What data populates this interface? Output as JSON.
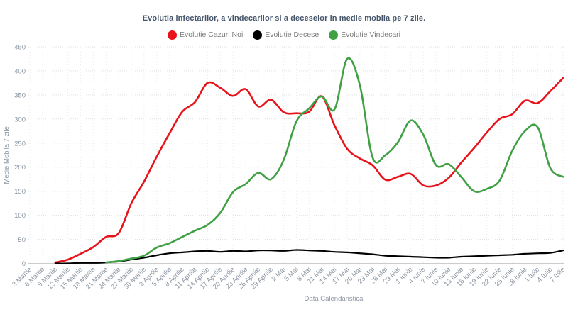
{
  "chart_data": {
    "type": "line",
    "title": "Evolutia infectarilor, a vindecarilor si a deceselor in medie mobila pe 7 zile.",
    "xlabel": "Data Calendaristica",
    "ylabel": "Medie Mobila 7 zile",
    "ylim": [
      0,
      450
    ],
    "y_ticks": [
      0,
      50,
      100,
      150,
      200,
      250,
      300,
      350,
      400,
      450
    ],
    "grid": true,
    "legend_position": "top",
    "categories": [
      "3 Martie",
      "6 Martie",
      "9 Martie",
      "12 Martie",
      "15 Martie",
      "18 Martie",
      "21 Martie",
      "24 Martie",
      "27 Martie",
      "30 Martie",
      "2 Aprilie",
      "5 Aprilie",
      "8 Aprilie",
      "11 Aprilie",
      "14 Aprilie",
      "17 Aprilie",
      "20 Aprilie",
      "23 Aprilie",
      "26 Aprilie",
      "29 Aprilie",
      "2 Mai",
      "5 Mai",
      "8 Mai",
      "11 Mai",
      "14 Mai",
      "17 Mai",
      "20 Mai",
      "23 Mai",
      "26 Mai",
      "29 Mai",
      "1 Iunie",
      "4 Iunie",
      "7 Iunie",
      "10 Iunie",
      "13 Iunie",
      "16 Iunie",
      "19 Iunie",
      "22 Iunie",
      "25 Iunie",
      "28 Iunie",
      "1 Iulie",
      "4 Iulie",
      "7 Iulie"
    ],
    "series": [
      {
        "name": "Evolutie Cazuri Noi",
        "color": "#e8131a",
        "line_width": 2.6,
        "values": [
          null,
          null,
          2,
          8,
          20,
          34,
          55,
          63,
          125,
          170,
          222,
          270,
          315,
          335,
          375,
          365,
          348,
          362,
          326,
          340,
          314,
          312,
          315,
          347,
          287,
          238,
          218,
          204,
          174,
          180,
          186,
          162,
          162,
          178,
          210,
          240,
          272,
          300,
          310,
          338,
          333,
          358,
          385
        ]
      },
      {
        "name": "Evolutie Decese",
        "color": "#000000",
        "line_width": 2.2,
        "values": [
          null,
          null,
          0,
          0,
          1,
          1,
          2,
          4,
          8,
          12,
          17,
          21,
          23,
          25,
          26,
          24,
          26,
          25,
          27,
          27,
          26,
          28,
          27,
          26,
          24,
          23,
          21,
          19,
          16,
          15,
          14,
          13,
          12,
          12,
          14,
          15,
          16,
          17,
          18,
          20,
          21,
          22,
          27
        ]
      },
      {
        "name": "Evolutie Vindecari",
        "color": "#3fa044",
        "line_width": 2.6,
        "values": [
          null,
          null,
          null,
          null,
          null,
          null,
          2,
          5,
          10,
          16,
          33,
          42,
          55,
          68,
          80,
          105,
          148,
          165,
          188,
          175,
          215,
          295,
          322,
          347,
          320,
          425,
          370,
          220,
          225,
          252,
          297,
          267,
          204,
          206,
          179,
          150,
          155,
          172,
          234,
          275,
          283,
          198,
          180
        ]
      }
    ]
  },
  "style": {
    "title_color": "#44546a",
    "axis_text_color": "#8b95a1",
    "legend_text_color": "#7b7b7b",
    "grid_color": "#e0e0e0",
    "vgrid_color": "#ebebeb",
    "axis_line_color": "#cccccc",
    "background": "#ffffff"
  }
}
